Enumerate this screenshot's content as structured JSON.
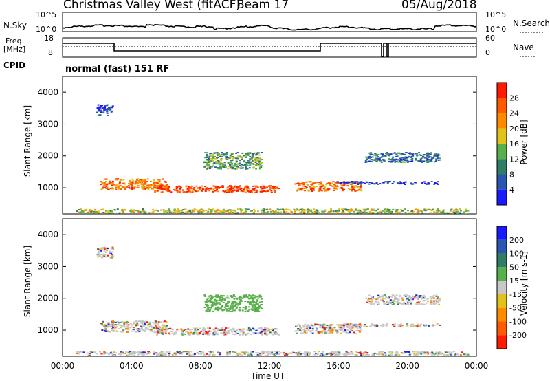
{
  "header": {
    "site": "Christmas Valley West (fitACF)",
    "beam": "Beam 17",
    "date": "05/Aug/2018"
  },
  "left_labels": {
    "nsky": "N.Sky",
    "freq": "Freq.",
    "freq_unit": "[MHz]",
    "cpid": "CPID"
  },
  "right_labels": {
    "nsearch": "N.Search",
    "nave": "Nave"
  },
  "cpid_text": "normal (fast) 151 RF",
  "noise_axis": {
    "top": "10^5",
    "bottom": "10^0"
  },
  "freq_axis": {
    "left_top": "18",
    "left_bottom": "8",
    "right_top": "60",
    "right_bottom": "0"
  },
  "chart_data": [
    {
      "type": "heatmap",
      "name": "power",
      "ylabel": "Slant Range [km]",
      "yticks": [
        1000,
        2000,
        3000,
        4000
      ],
      "ylim": [
        180,
        4500
      ],
      "colorbar": {
        "label": "Power [dB]",
        "ticks": [
          "4",
          "8",
          "12",
          "16",
          "20",
          "24",
          "28"
        ],
        "colors": [
          "#1a1aff",
          "#2a55b0",
          "#2f7d63",
          "#58b04a",
          "#e0c21a",
          "#ff8a00",
          "#ff5a00",
          "#ff1a00"
        ]
      }
    },
    {
      "type": "heatmap",
      "name": "velocity",
      "ylabel": "Slant Range [km]",
      "yticks": [
        1000,
        2000,
        3000,
        4000
      ],
      "ylim": [
        180,
        4500
      ],
      "colorbar": {
        "label": "Velocity [m s-1]",
        "ticks": [
          "200",
          "100",
          "50",
          "15",
          "-15",
          "-50",
          "-100",
          "-200"
        ],
        "colors": [
          "#1a1aff",
          "#2a55b0",
          "#2f7d63",
          "#58b04a",
          "#c8c8c8",
          "#e0c21a",
          "#ff8a00",
          "#ff5a00",
          "#ff1a00"
        ]
      }
    }
  ],
  "time_axis": {
    "ticks": [
      "00:00",
      "04:00",
      "08:00",
      "12:00",
      "16:00",
      "20:00",
      "00:00"
    ],
    "label": "Time UT"
  }
}
